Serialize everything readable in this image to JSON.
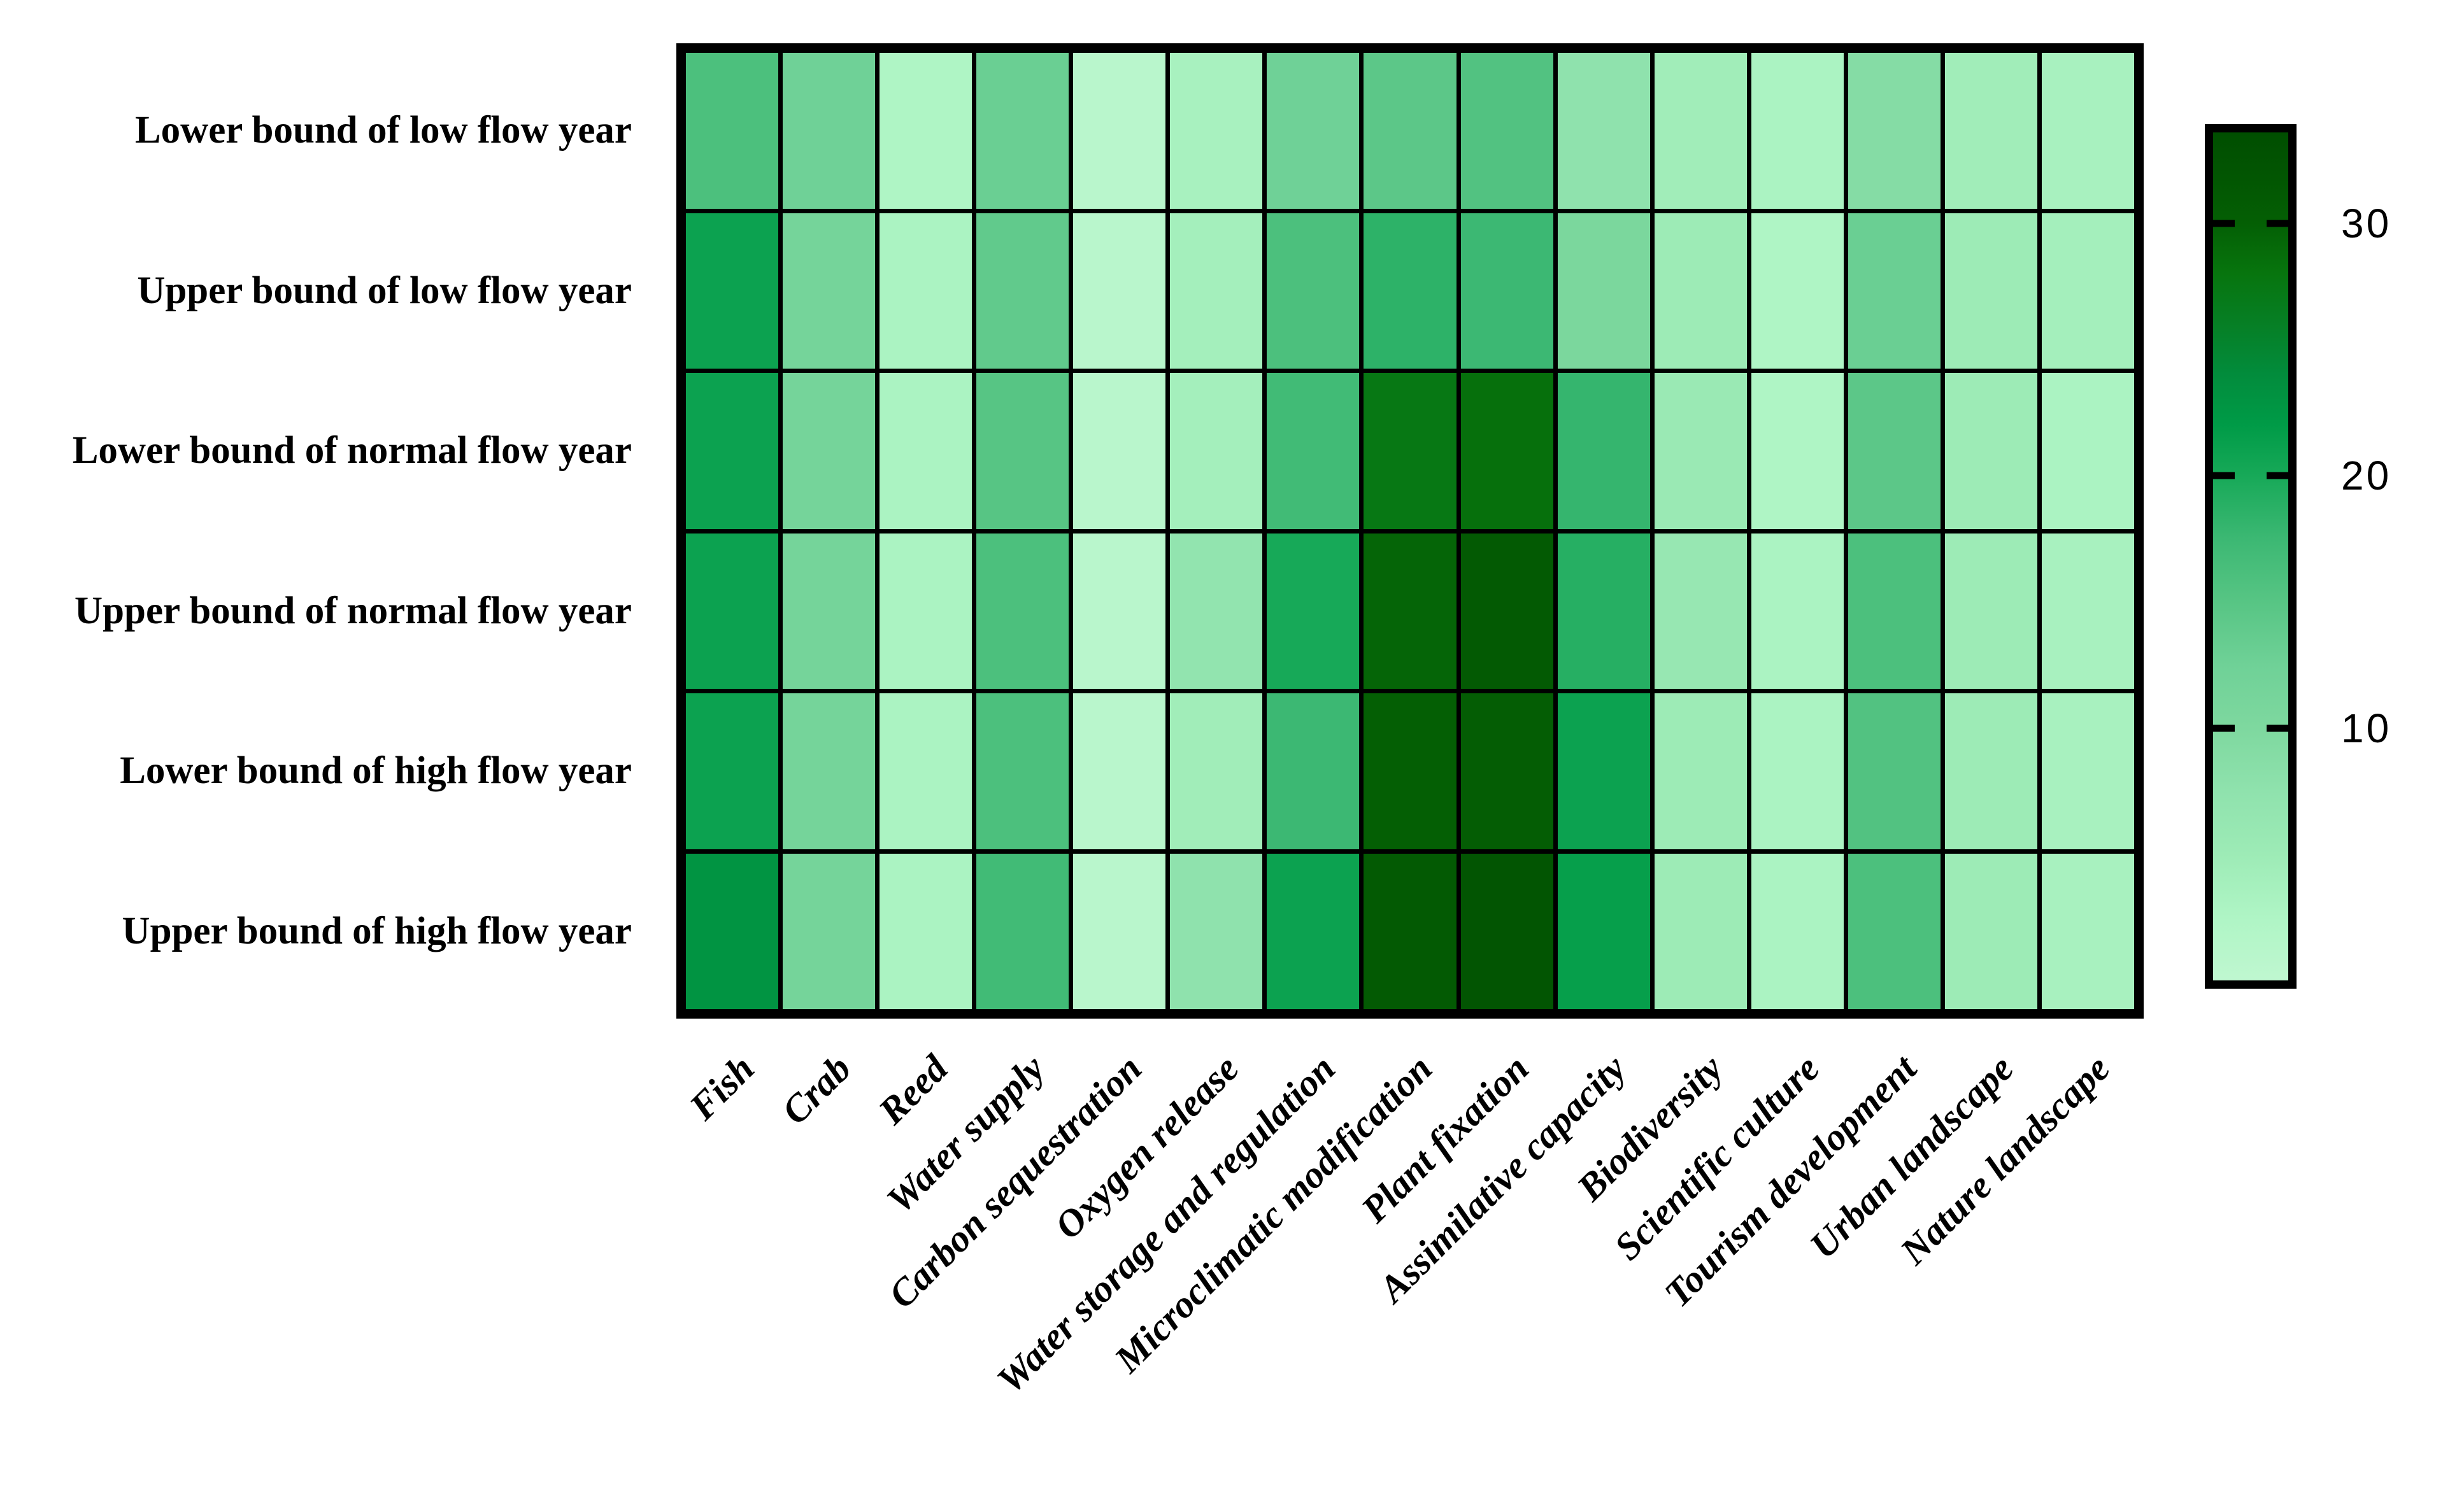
{
  "chart_data": {
    "type": "heatmap",
    "title": "",
    "xlabel": "",
    "ylabel": "",
    "rows": [
      "Lower bound of low flow year",
      "Upper bound of low flow year",
      "Lower bound of normal flow year",
      "Upper bound of normal flow year",
      "Lower bound of high flow year",
      "Upper bound of high flow year"
    ],
    "columns": [
      "Fish",
      "Crab",
      "Reed",
      "Water supply",
      "Carbon sequestration",
      "Oxygen release",
      "Water storage and regulation",
      "Microclimatic modification",
      "Plant fixation",
      "Assimilative capacity",
      "Biodiversity",
      "Scientific culture",
      "Tourism development",
      "Urban landscape",
      "Nature landscape"
    ],
    "values": [
      [
        16,
        12.5,
        2.5,
        13,
        1,
        3.5,
        12.5,
        14.5,
        15.5,
        7.5,
        4.5,
        3,
        9,
        4.5,
        3.5
      ],
      [
        21,
        11.5,
        3,
        14,
        1,
        4,
        16,
        18.5,
        17.5,
        10.5,
        5,
        2.5,
        13,
        5,
        4
      ],
      [
        21,
        11.5,
        3,
        15,
        1,
        4,
        17,
        27.5,
        28.5,
        18,
        5.5,
        2.5,
        14.5,
        5,
        3
      ],
      [
        21,
        11.5,
        3,
        16,
        1,
        7,
        20,
        29.5,
        31,
        19,
        6,
        3,
        16,
        5,
        3.5
      ],
      [
        21,
        11.5,
        3,
        16,
        1,
        4.5,
        17.5,
        30,
        30.5,
        21,
        5,
        3,
        15.5,
        5,
        3.5
      ],
      [
        23,
        11.5,
        3,
        17,
        1,
        7.5,
        21,
        31,
        32,
        21.5,
        5,
        3,
        16,
        5,
        3.5
      ]
    ],
    "colorbar": {
      "ticks": [
        10,
        20,
        30
      ],
      "vmin": 0,
      "vmax": 33.6,
      "gradient_stops": [
        {
          "v": 0,
          "color": "#bff7d0"
        },
        {
          "v": 2.5,
          "color": "#aff5c5"
        },
        {
          "v": 5,
          "color": "#9debb6"
        },
        {
          "v": 7.5,
          "color": "#8fe2ad"
        },
        {
          "v": 10,
          "color": "#7ed89f"
        },
        {
          "v": 12.5,
          "color": "#6fd197"
        },
        {
          "v": 15,
          "color": "#57c584"
        },
        {
          "v": 17.5,
          "color": "#3cb873"
        },
        {
          "v": 20,
          "color": "#17a958"
        },
        {
          "v": 22,
          "color": "#009b47"
        },
        {
          "v": 24,
          "color": "#028c3c"
        },
        {
          "v": 26,
          "color": "#067f25"
        },
        {
          "v": 28,
          "color": "#07750e"
        },
        {
          "v": 30,
          "color": "#045f04"
        },
        {
          "v": 32,
          "color": "#025502"
        },
        {
          "v": 33.6,
          "color": "#004e00"
        }
      ]
    },
    "grid_line_color": "#000000",
    "background_color": "#ffffff",
    "legend_position": "right",
    "grid_on": true
  }
}
